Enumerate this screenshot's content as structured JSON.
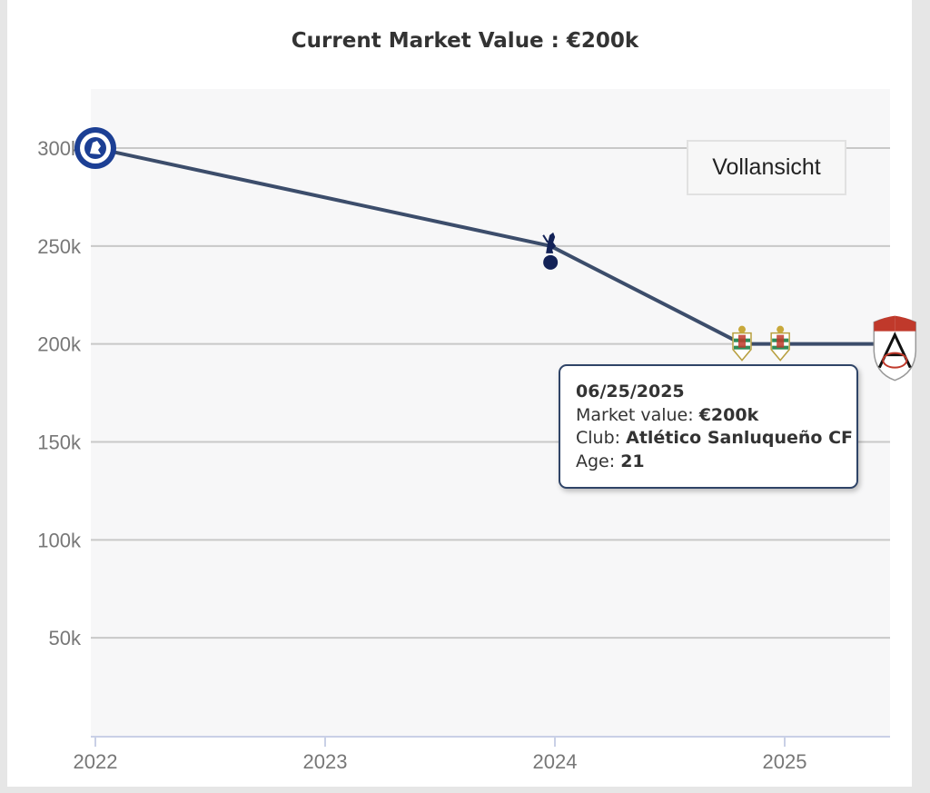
{
  "title": "Current Market Value : €200k",
  "full_view_label": "Vollansicht",
  "tooltip": {
    "date": "06/25/2025",
    "market_value_label": "Market value:",
    "market_value": "€200k",
    "club_label": "Club:",
    "club": "Atlético Sanluqueño CF",
    "age_label": "Age:",
    "age": "21"
  },
  "chart_data": {
    "type": "line",
    "title": "Current Market Value : €200k",
    "xlabel": "",
    "ylabel": "",
    "x_ticks": [
      "2022",
      "2023",
      "2024",
      "2025"
    ],
    "y_ticks": [
      "50k",
      "100k",
      "150k",
      "200k",
      "250k",
      "300k"
    ],
    "ylim": [
      0,
      300000
    ],
    "grid": true,
    "colors": {
      "line": "#3c4d6b",
      "grid": "#c8c8c8",
      "plot_bg": "#f7f7f8"
    },
    "series": [
      {
        "points": [
          {
            "date": "2022-01-01",
            "value": 300000,
            "club_icon": "chelsea-crest-icon"
          },
          {
            "date": "2023-12-25",
            "value": 250000,
            "club_icon": "tottenham-crest-icon"
          },
          {
            "date": "2024-10-25",
            "value": 200000,
            "club_icon": "cordoba-crest-icon"
          },
          {
            "date": "2024-12-25",
            "value": 200000,
            "club_icon": "cordoba-crest-icon"
          },
          {
            "date": "2025-06-25",
            "value": 200000,
            "club_icon": "atletico-sanluqueno-crest-icon"
          }
        ]
      }
    ]
  }
}
